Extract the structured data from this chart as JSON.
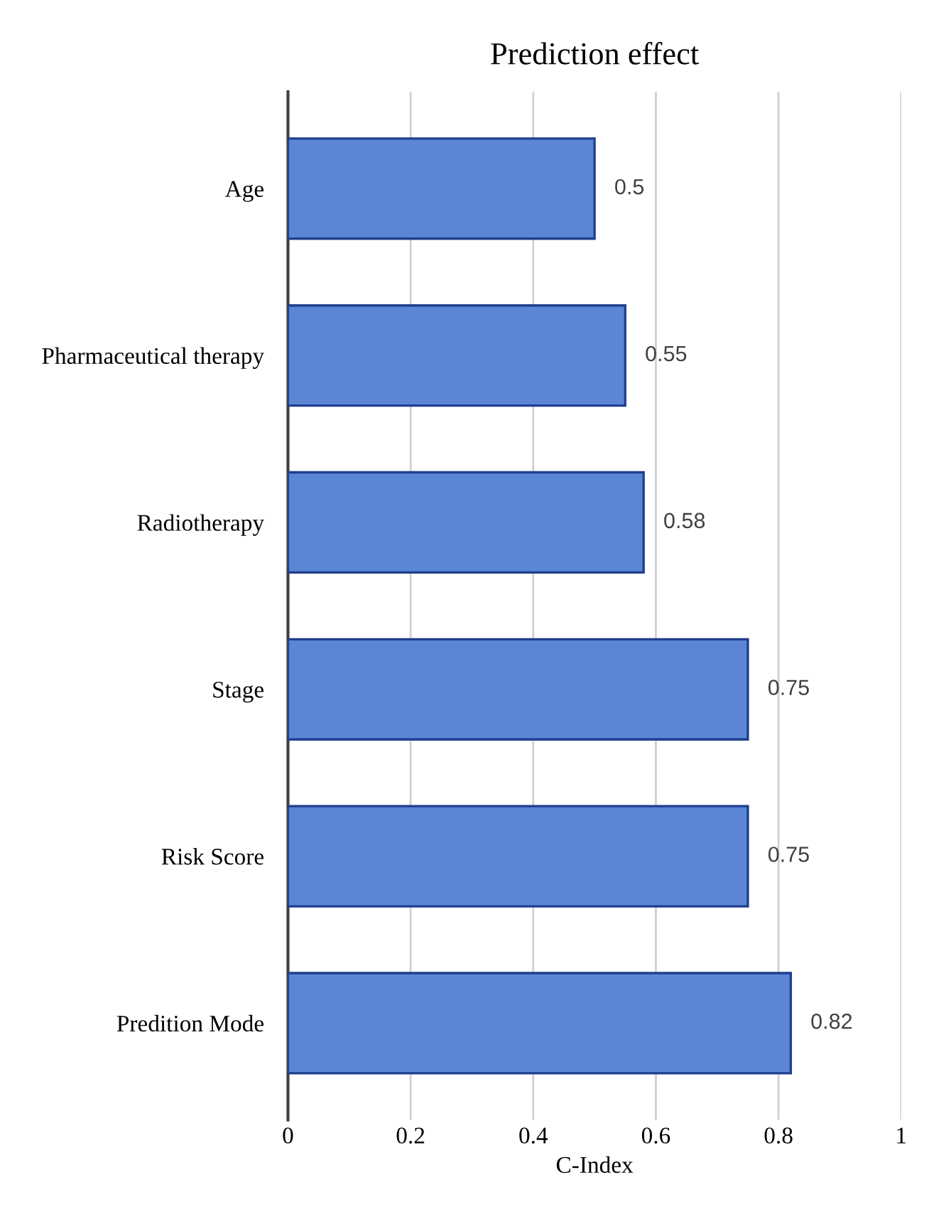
{
  "chart_data": {
    "type": "bar",
    "orientation": "horizontal",
    "title": "Prediction effect",
    "xlabel": "C-Index",
    "categories": [
      "Age",
      "Pharmaceutical therapy",
      "Radiotherapy",
      "Stage",
      "Risk Score",
      "Predition Mode"
    ],
    "values": [
      0.5,
      0.55,
      0.58,
      0.75,
      0.75,
      0.82
    ],
    "color": "#5b86d6",
    "xlim": [
      0,
      1
    ],
    "xticks": [
      0,
      0.2,
      0.4,
      0.6,
      0.8,
      1
    ],
    "grid": "x",
    "data_labels": true
  }
}
